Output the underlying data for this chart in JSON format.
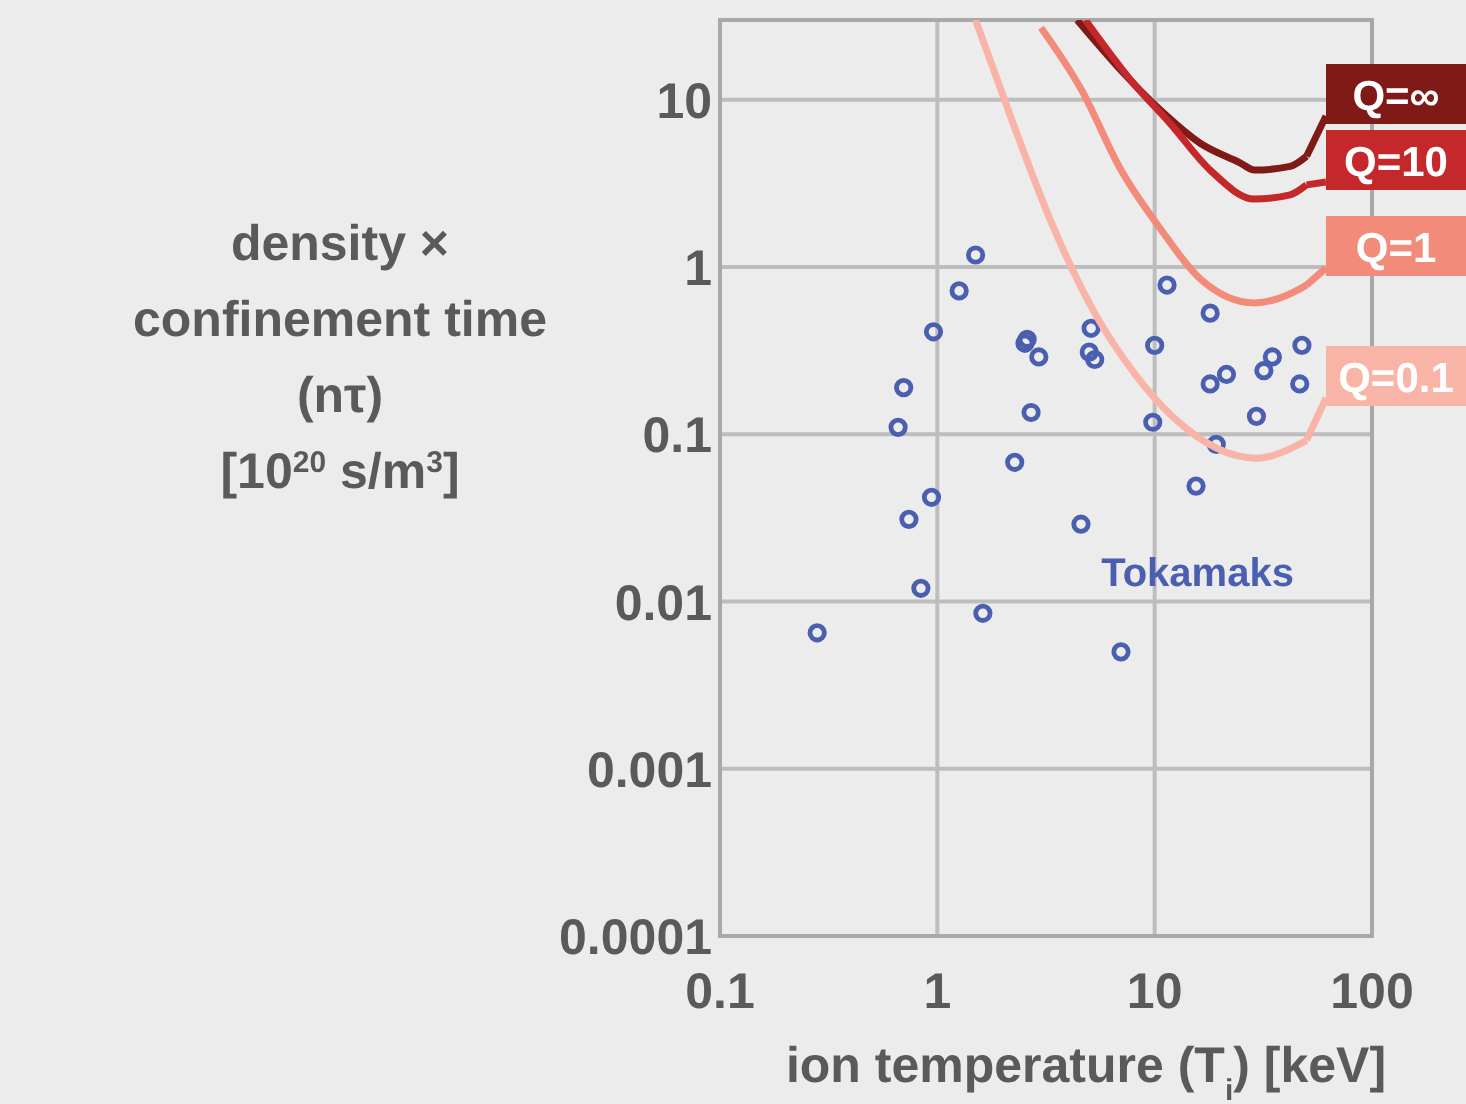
{
  "chart_data": {
    "type": "scatter",
    "xlabel": "ion temperature (T$_{i}$) [keV]",
    "ylabel": "density ×\nconfinement time\n(nτ)\n[10$^{20}$ s/m$^{3}$]",
    "log": "xy",
    "xlim": [
      0.1,
      100
    ],
    "ylim": [
      0.0001,
      30
    ],
    "xticks": [
      0.1,
      1,
      10,
      100
    ],
    "yticks": [
      0.0001,
      0.001,
      0.01,
      0.1,
      1,
      10
    ],
    "grid": true,
    "legend": "right",
    "series": [
      {
        "name": "Tokamaks",
        "marker": "circle",
        "color": "#4a5fb0",
        "x": [
          0.28,
          0.66,
          0.7,
          0.74,
          0.84,
          0.94,
          0.96,
          1.26,
          1.5,
          1.62,
          2.27,
          2.59,
          2.53,
          2.93,
          2.7,
          4.58,
          5.1,
          5.0,
          5.3,
          7.0,
          9.8,
          10,
          11.4,
          15.5,
          18,
          19.2,
          18,
          21.4,
          29.4,
          31.8,
          34.8,
          47.6,
          46.5
        ],
        "values": [
          0.0065,
          0.11,
          0.19,
          0.031,
          0.012,
          0.042,
          0.41,
          0.72,
          1.18,
          0.0085,
          0.068,
          0.37,
          0.35,
          0.29,
          0.135,
          0.029,
          0.43,
          0.31,
          0.28,
          0.005,
          0.118,
          0.34,
          0.78,
          0.049,
          0.53,
          0.087,
          0.2,
          0.228,
          0.128,
          0.24,
          0.29,
          0.34,
          0.2
        ]
      },
      {
        "name": "Q=∞",
        "type": "line",
        "marker": "none",
        "color": "#801a16",
        "x": [
          4.4,
          7,
          10.6,
          16.2,
          24.7,
          28.8,
          42,
          50
        ],
        "values": [
          30,
          15,
          8.7,
          5.5,
          4.2,
          3.8,
          4.0,
          4.6
        ]
      },
      {
        "name": "Q=10",
        "type": "line",
        "marker": "none",
        "color": "#c4282a",
        "x": [
          4.8,
          7.8,
          11.8,
          18,
          28.8,
          42,
          50
        ],
        "values": [
          30,
          13,
          7.2,
          3.8,
          2.55,
          2.7,
          3.1
        ]
      },
      {
        "name": "Q=1",
        "type": "line",
        "marker": "none",
        "color": "#f28b7a",
        "x": [
          3.0,
          4.6,
          7.0,
          10.6,
          16.2,
          28.8,
          46.6,
          50
        ],
        "values": [
          27,
          11.5,
          3.8,
          1.7,
          0.85,
          0.61,
          0.74,
          0.78
        ]
      },
      {
        "name": "Q=0.1",
        "type": "line",
        "marker": "none",
        "color": "#f9b4a8",
        "x": [
          1.5,
          2.2,
          3.3,
          5.3,
          8.1,
          12.3,
          29.4,
          50
        ],
        "values": [
          30,
          7.6,
          1.93,
          0.53,
          0.23,
          0.125,
          0.072,
          0.092
        ]
      }
    ]
  }
}
